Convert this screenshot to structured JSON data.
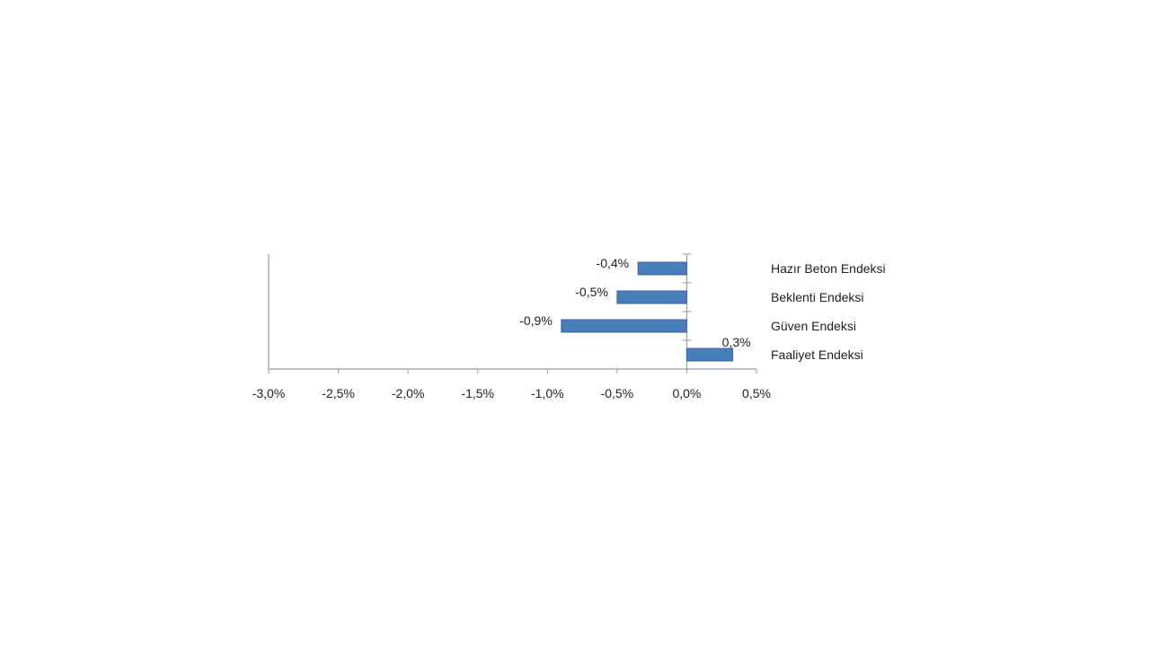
{
  "chart_data": {
    "type": "bar",
    "orientation": "horizontal",
    "categories": [
      "Hazır Beton Endeksi",
      "Beklenti Endeksi",
      "Güven Endeksi",
      "Faaliyet Endeksi"
    ],
    "values": [
      -0.35,
      -0.5,
      -0.9,
      0.33
    ],
    "data_labels": [
      "-0,4%",
      "-0,5%",
      "-0,9%",
      "0,3%"
    ],
    "x_ticks": [
      "-3,0%",
      "-2,5%",
      "-2,0%",
      "-1,5%",
      "-1,0%",
      "-0,5%",
      "0,0%",
      "0,5%"
    ],
    "x_tick_values": [
      -3.0,
      -2.5,
      -2.0,
      -1.5,
      -1.0,
      -0.5,
      0.0,
      0.5
    ],
    "xlim": [
      -3.0,
      0.5
    ],
    "title": "",
    "xlabel": "",
    "ylabel": "",
    "grid": false,
    "legend": "none",
    "colors": {
      "bar": "#4A7EBB",
      "bar_edge": "#3A67A0",
      "axis": "#9a9a9a",
      "text": "#222222"
    }
  }
}
